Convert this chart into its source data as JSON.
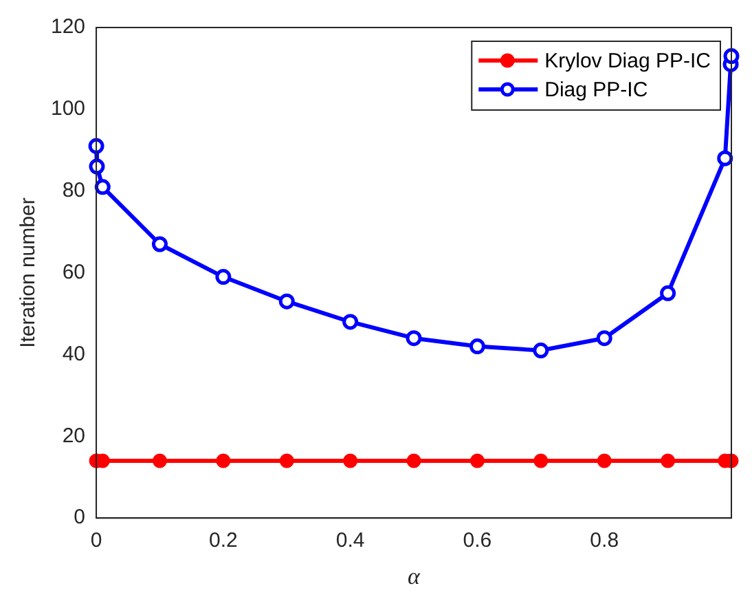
{
  "chart_data": {
    "type": "line",
    "xlabel": "α",
    "ylabel": "Iteration number",
    "x": [
      0,
      0.001,
      0.01,
      0.1,
      0.2,
      0.3,
      0.4,
      0.5,
      0.6,
      0.7,
      0.8,
      0.9,
      0.99,
      0.999,
      1
    ],
    "series": [
      {
        "name": "Krylov Diag PP-IC",
        "color": "#ff0000",
        "values": [
          14,
          14,
          14,
          14,
          14,
          14,
          14,
          14,
          14,
          14,
          14,
          14,
          14,
          14,
          14
        ]
      },
      {
        "name": "Diag PP-IC",
        "color": "#0000ff",
        "values": [
          91,
          86,
          81,
          67,
          59,
          53,
          48,
          44,
          42,
          41,
          44,
          55,
          88,
          111,
          113
        ]
      }
    ],
    "xlim": [
      0,
      1
    ],
    "xticks": [
      0,
      0.2,
      0.4,
      0.6,
      0.8,
      {
        "value": 1,
        "label": null
      }
    ],
    "ylim": [
      0,
      120
    ],
    "yticks": [
      0,
      20,
      40,
      60,
      80,
      100,
      120
    ],
    "grid": false,
    "legend": "top right",
    "marker": "circle",
    "line_style": "solid"
  }
}
